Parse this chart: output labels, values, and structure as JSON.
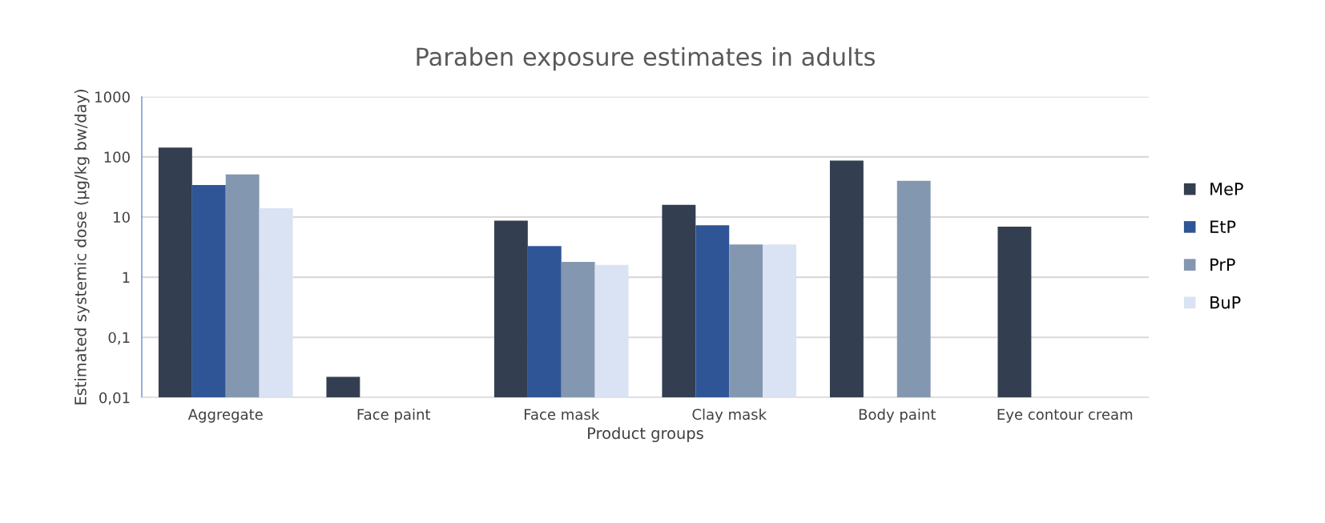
{
  "chart_data": {
    "type": "bar",
    "title": "Paraben exposure estimates in adults",
    "xlabel": "Product groups",
    "ylabel": "Estimated systemic dose (µg/kg bw/day)",
    "categories": [
      "Aggregate",
      "Face paint",
      "Face mask",
      "Clay mask",
      "Body paint",
      "Eye contour cream"
    ],
    "series": [
      {
        "name": "MeP",
        "color": "#333f50",
        "values": [
          143,
          0.022,
          8.7,
          16,
          87,
          6.9
        ]
      },
      {
        "name": "EtP",
        "color": "#2f5597",
        "values": [
          34,
          null,
          3.3,
          7.3,
          null,
          null
        ]
      },
      {
        "name": "PrP",
        "color": "#8497b0",
        "values": [
          51,
          null,
          1.8,
          3.5,
          40,
          null
        ]
      },
      {
        "name": "BuP",
        "color": "#dae3f3",
        "values": [
          14,
          null,
          1.6,
          3.5,
          null,
          null
        ]
      }
    ],
    "log": "y",
    "ylim": [
      0.01,
      1000
    ],
    "yticks": [
      {
        "value": 0.01,
        "label": "0,01"
      },
      {
        "value": 0.1,
        "label": "0,1"
      },
      1,
      10,
      100,
      1000
    ],
    "grid": "y",
    "legend": "right"
  }
}
